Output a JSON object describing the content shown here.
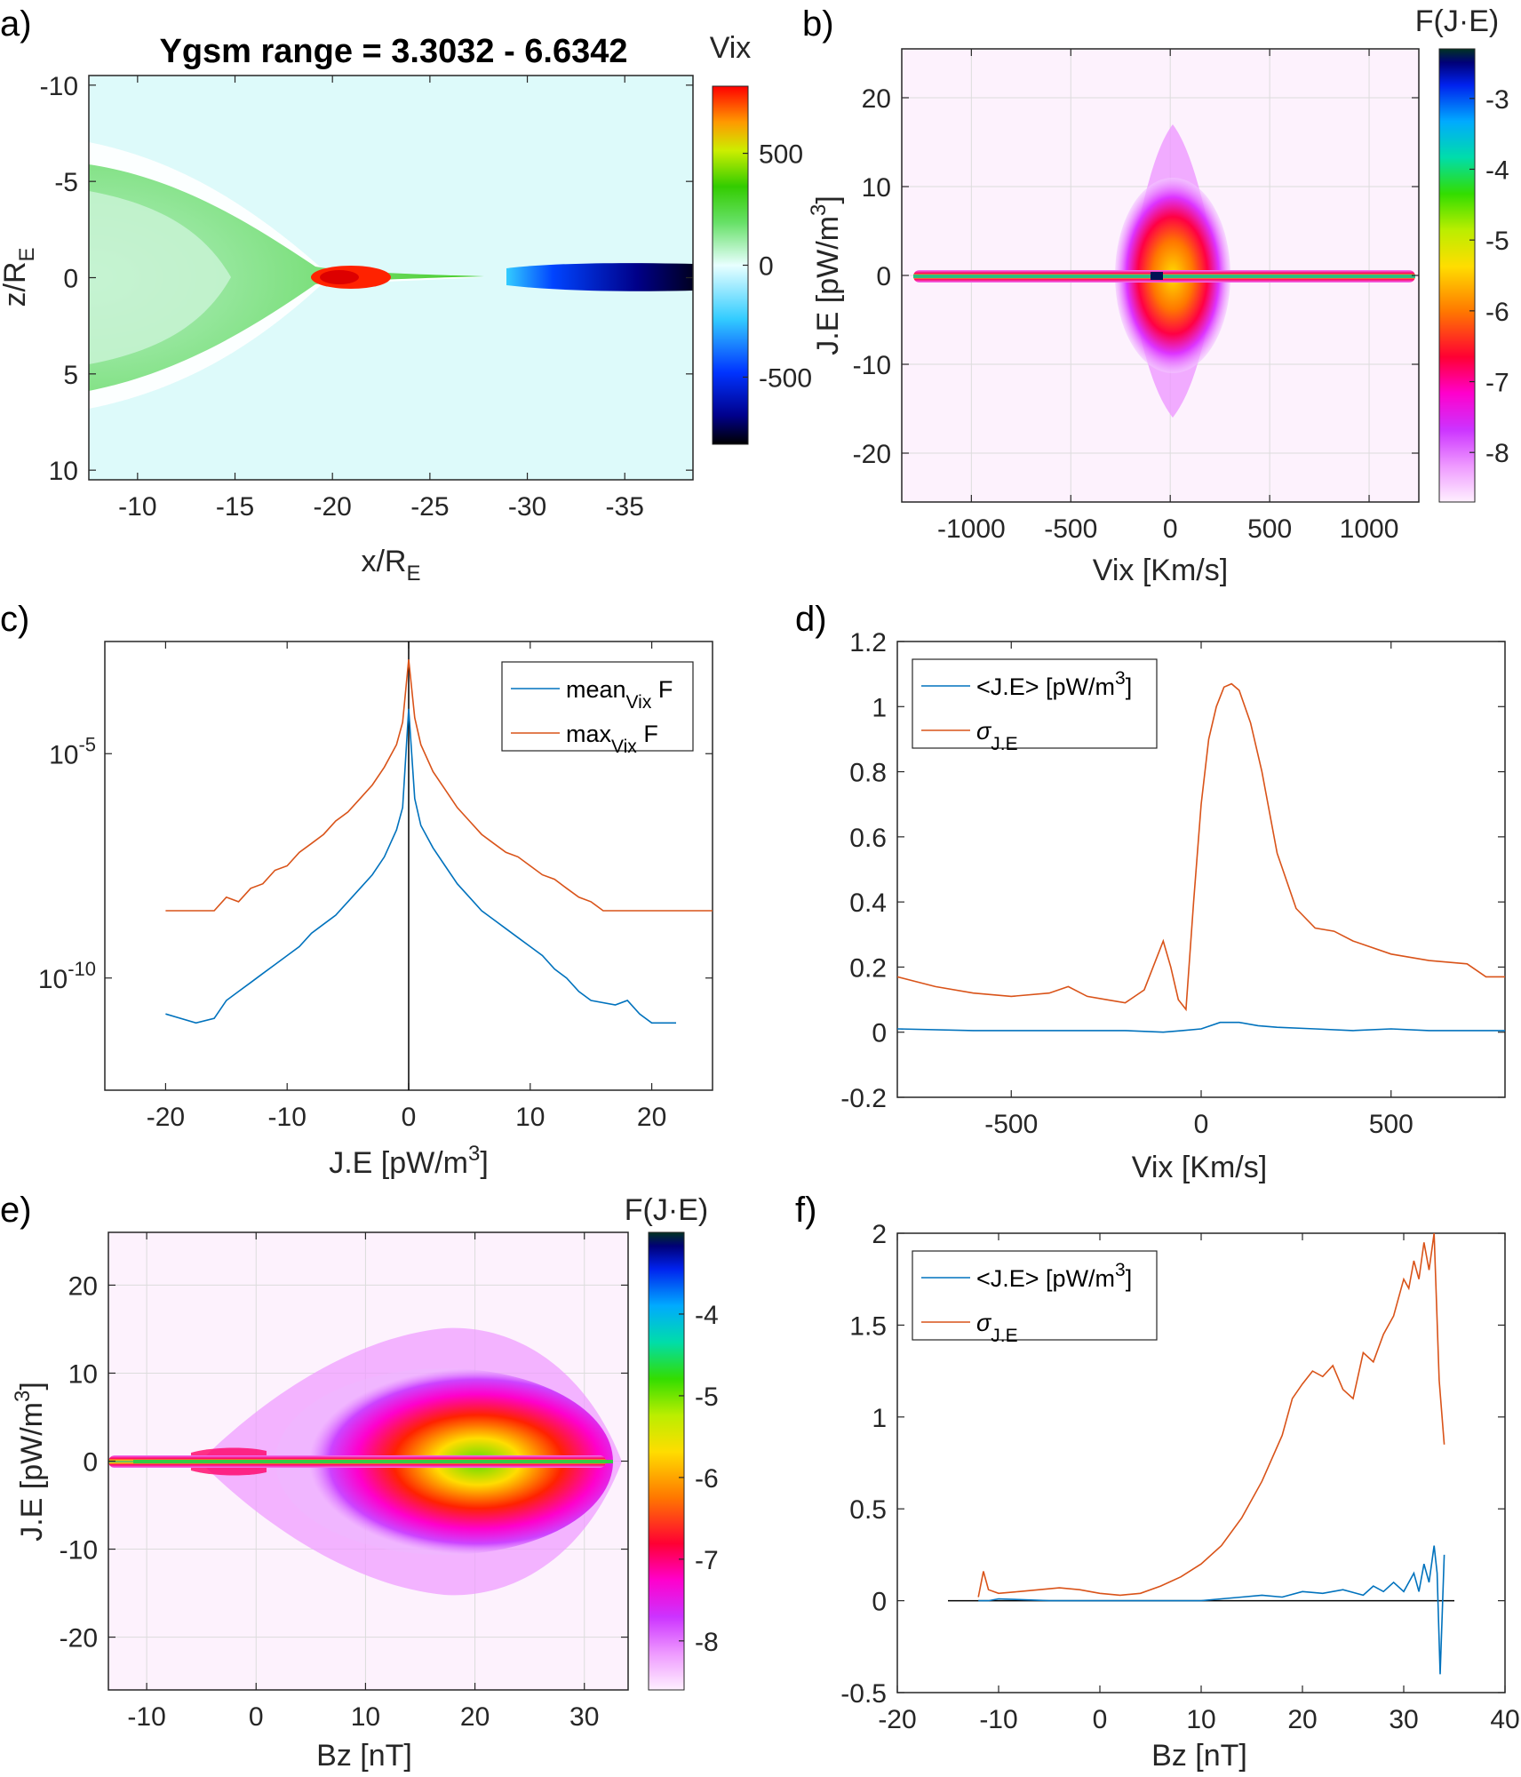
{
  "colors": {
    "blue": "#0072BD",
    "orange": "#D95319",
    "axis": "#262626",
    "grid": "#dcdcdc"
  },
  "chart_data": [
    {
      "id": "a",
      "panel_label": "a)",
      "type": "heatmap",
      "title": "Ygsm range = 3.3032 - 6.6342",
      "xlabel": "x/R",
      "xlabel_sub": "E",
      "ylabel": "z/R",
      "ylabel_sub": "E",
      "xlim": [
        -7.5,
        -38.5
      ],
      "ylim": [
        -10.5,
        10.5
      ],
      "y_reversed": true,
      "xticks": [
        -10,
        -15,
        -20,
        -25,
        -30,
        -35
      ],
      "yticks": [
        -10,
        -5,
        0,
        5,
        10
      ],
      "colorbar": {
        "title": "Vix",
        "ticks": [
          500,
          0,
          -500
        ],
        "range": [
          -800,
          800
        ]
      }
    },
    {
      "id": "b",
      "panel_label": "b)",
      "type": "heatmap",
      "title": "",
      "xlabel": "Vix [Km/s]",
      "ylabel": "J.E [pW/m",
      "ylabel_sup": "3",
      "ylabel_end": "]",
      "xlim": [
        -1350,
        1250
      ],
      "ylim": [
        -25.5,
        25.5
      ],
      "xticks": [
        -1000,
        -500,
        0,
        500,
        1000
      ],
      "yticks": [
        20,
        10,
        0,
        -10,
        -20
      ],
      "grid": true,
      "colorbar": {
        "title": "F(J·E)",
        "ticks": [
          -3,
          -4,
          -5,
          -6,
          -7,
          -8
        ],
        "range": [
          -8.7,
          -2.3
        ]
      }
    },
    {
      "id": "c",
      "panel_label": "c)",
      "type": "line",
      "xlabel": "J.E [pW/m",
      "xlabel_sup": "3",
      "xlabel_end": "]",
      "ylabel": "",
      "xlim": [
        -25,
        25
      ],
      "ylog_lim": [
        -12.5,
        -2.5
      ],
      "yscale": "log",
      "xticks": [
        -20,
        -10,
        0,
        10,
        20
      ],
      "yticks": [
        {
          "base": "10",
          "exp": "-5",
          "value": -5
        },
        {
          "base": "10",
          "exp": "-10",
          "value": -10
        }
      ],
      "legend": [
        {
          "name": "mean",
          "sub": "Vix",
          "suffix": " F",
          "color": "#0072BD"
        },
        {
          "name": "max",
          "sub": "Vix",
          "suffix": " F",
          "color": "#D95319"
        }
      ],
      "series": [
        {
          "name": "max_Vix F",
          "x": [
            -20,
            -18,
            -16,
            -15,
            -14,
            -13,
            -12,
            -11,
            -10,
            -9,
            -8,
            -7,
            -6,
            -5,
            -4,
            -3,
            -2,
            -1,
            -0.5,
            0,
            0.5,
            1,
            2,
            3,
            4,
            5,
            6,
            7,
            8,
            9,
            10,
            11,
            12,
            13,
            14,
            15,
            16,
            18,
            20,
            22,
            25
          ],
          "log10_y": [
            -8.5,
            -8.5,
            -8.5,
            -8.2,
            -8.3,
            -8.0,
            -7.9,
            -7.6,
            -7.5,
            -7.2,
            -7.0,
            -6.8,
            -6.5,
            -6.3,
            -6.0,
            -5.7,
            -5.3,
            -4.8,
            -4.3,
            -2.9,
            -4.2,
            -4.8,
            -5.4,
            -5.8,
            -6.2,
            -6.5,
            -6.8,
            -7.0,
            -7.2,
            -7.3,
            -7.5,
            -7.7,
            -7.8,
            -8.0,
            -8.2,
            -8.3,
            -8.5,
            -8.5,
            -8.5,
            -8.5,
            -8.5
          ]
        },
        {
          "name": "mean_Vix F",
          "x": [
            -20,
            -17.5,
            -16,
            -15,
            -14,
            -13,
            -12,
            -11,
            -10,
            -9,
            -8,
            -7,
            -6,
            -5,
            -4,
            -3,
            -2,
            -1,
            -0.5,
            0,
            0.5,
            1,
            2,
            3,
            4,
            5,
            6,
            7,
            8,
            9,
            10,
            11,
            12,
            13,
            14,
            15,
            17,
            18,
            19,
            20,
            22
          ],
          "log10_y": [
            -10.8,
            -11.0,
            -10.9,
            -10.5,
            -10.3,
            -10.1,
            -9.9,
            -9.7,
            -9.5,
            -9.3,
            -9.0,
            -8.8,
            -8.6,
            -8.3,
            -8.0,
            -7.7,
            -7.3,
            -6.7,
            -6.2,
            -4.0,
            -6.0,
            -6.6,
            -7.1,
            -7.5,
            -7.9,
            -8.2,
            -8.5,
            -8.7,
            -8.9,
            -9.1,
            -9.3,
            -9.5,
            -9.8,
            -10.0,
            -10.3,
            -10.5,
            -10.6,
            -10.5,
            -10.8,
            -11.0,
            -11.0
          ]
        }
      ],
      "vline_x": 0
    },
    {
      "id": "d",
      "panel_label": "d)",
      "type": "line",
      "xlabel": "Vix [Km/s]",
      "ylabel": "",
      "xlim": [
        -800,
        800
      ],
      "ylim": [
        -0.2,
        1.2
      ],
      "xticks": [
        -500,
        0,
        500
      ],
      "yticks": [
        1.2,
        1,
        0.8,
        0.6,
        0.4,
        0.2,
        0,
        -0.2
      ],
      "legend": [
        {
          "name": "<J.E> [pW/m",
          "sup": "3",
          "suffix": "]",
          "color": "#0072BD"
        },
        {
          "name": "σ",
          "sub": "J.E",
          "color": "#D95319"
        }
      ],
      "series": [
        {
          "name": "<J.E>",
          "x": [
            -800,
            -600,
            -400,
            -200,
            -100,
            -50,
            0,
            50,
            100,
            150,
            200,
            300,
            400,
            500,
            600,
            700,
            800
          ],
          "values": [
            0.01,
            0.005,
            0.005,
            0.005,
            0.0,
            0.005,
            0.01,
            0.03,
            0.03,
            0.02,
            0.015,
            0.01,
            0.005,
            0.01,
            0.005,
            0.005,
            0.005
          ]
        },
        {
          "name": "σ_J.E",
          "x": [
            -800,
            -700,
            -600,
            -500,
            -400,
            -350,
            -300,
            -250,
            -200,
            -150,
            -100,
            -80,
            -60,
            -40,
            -20,
            0,
            20,
            40,
            60,
            80,
            100,
            130,
            160,
            200,
            250,
            300,
            350,
            400,
            500,
            600,
            700,
            750,
            800
          ],
          "values": [
            0.17,
            0.14,
            0.12,
            0.11,
            0.12,
            0.14,
            0.11,
            0.1,
            0.09,
            0.13,
            0.28,
            0.2,
            0.1,
            0.07,
            0.4,
            0.7,
            0.9,
            1.0,
            1.06,
            1.07,
            1.05,
            0.95,
            0.8,
            0.55,
            0.38,
            0.32,
            0.31,
            0.28,
            0.24,
            0.22,
            0.21,
            0.17,
            0.17
          ]
        }
      ]
    },
    {
      "id": "e",
      "panel_label": "e)",
      "type": "heatmap",
      "title": "",
      "xlabel": "Bz [nT]",
      "ylabel": "J.E [pW/m",
      "ylabel_sup": "3",
      "ylabel_end": "]",
      "xlim": [
        -13.5,
        34
      ],
      "ylim": [
        -26,
        26
      ],
      "xticks": [
        -10,
        0,
        10,
        20,
        30
      ],
      "yticks": [
        20,
        10,
        0,
        -10,
        -20
      ],
      "grid": true,
      "colorbar": {
        "title": "F(J·E)",
        "ticks": [
          -4,
          -5,
          -6,
          -7,
          -8
        ],
        "range": [
          -8.6,
          -3.0
        ]
      }
    },
    {
      "id": "f",
      "panel_label": "f)",
      "type": "line",
      "xlabel": "Bz [nT]",
      "ylabel": "",
      "xlim": [
        -20,
        40
      ],
      "ylim": [
        -0.5,
        2
      ],
      "xticks": [
        -20,
        -10,
        0,
        10,
        20,
        30,
        40
      ],
      "yticks": [
        2,
        1.5,
        1,
        0.5,
        0,
        -0.5
      ],
      "legend": [
        {
          "name": "<J.E> [pW/m",
          "sup": "3",
          "suffix": "]",
          "color": "#0072BD"
        },
        {
          "name": "σ",
          "sub": "J.E",
          "color": "#D95319"
        }
      ],
      "series": [
        {
          "name": "<J.E>",
          "x": [
            -12,
            -11,
            -10,
            -5,
            0,
            5,
            10,
            12,
            14,
            16,
            18,
            20,
            22,
            24,
            26,
            27,
            28,
            29,
            30,
            31,
            31.5,
            32,
            32.5,
            33,
            33.3,
            33.6,
            34
          ],
          "values": [
            0,
            0,
            0.01,
            0,
            0,
            0,
            0,
            0.01,
            0.02,
            0.03,
            0.02,
            0.05,
            0.04,
            0.06,
            0.03,
            0.08,
            0.05,
            0.1,
            0.05,
            0.15,
            0.05,
            0.2,
            0.1,
            0.3,
            0.15,
            -0.4,
            0.25
          ]
        },
        {
          "name": "σ_J.E",
          "x": [
            -12,
            -11.5,
            -11,
            -10,
            -8,
            -6,
            -4,
            -2,
            0,
            2,
            4,
            6,
            8,
            10,
            12,
            14,
            16,
            18,
            19,
            20,
            21,
            22,
            23,
            24,
            25,
            26,
            27,
            28,
            29,
            30,
            30.5,
            31,
            31.5,
            32,
            32.5,
            33,
            33.5,
            34
          ],
          "values": [
            0.02,
            0.16,
            0.06,
            0.04,
            0.05,
            0.06,
            0.07,
            0.06,
            0.04,
            0.03,
            0.04,
            0.08,
            0.13,
            0.2,
            0.3,
            0.45,
            0.65,
            0.9,
            1.1,
            1.18,
            1.25,
            1.22,
            1.28,
            1.15,
            1.1,
            1.35,
            1.3,
            1.45,
            1.55,
            1.75,
            1.7,
            1.85,
            1.75,
            1.95,
            1.8,
            2.0,
            1.2,
            0.85
          ]
        }
      ],
      "hline_y": 0
    }
  ]
}
